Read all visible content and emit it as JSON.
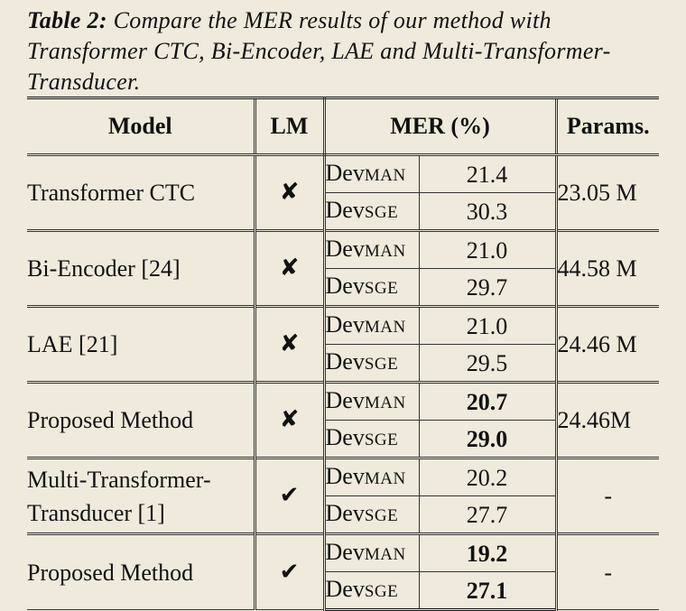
{
  "caption": {
    "label": "Table 2:",
    "text": "Compare the MER results of our method with Transformer CTC, Bi-Encoder, LAE and Multi-Transformer-Transducer."
  },
  "table": {
    "headers": {
      "model": "Model",
      "lm": "LM",
      "mer": "MER (%)",
      "params": "Params."
    },
    "rows": [
      {
        "model": "Transformer CTC",
        "lm": "✘",
        "dev_man": "21.4",
        "dev_sge": "30.3",
        "params": "23.05 M"
      },
      {
        "model": "Bi-Encoder [24]",
        "lm": "✘",
        "dev_man": "21.0",
        "dev_sge": "29.7",
        "params": "44.58 M"
      },
      {
        "model": "LAE [21]",
        "lm": "✘",
        "dev_man": "21.0",
        "dev_sge": "29.5",
        "params": "24.46 M"
      },
      {
        "model": "Proposed Method",
        "lm": "✘",
        "dev_man": "20.7",
        "dev_sge": "29.0",
        "params": "24.46M"
      },
      {
        "model": "Multi-Transformer-Transducer [1]",
        "lm": "✔",
        "dev_man": "20.2",
        "dev_sge": "27.7",
        "params": "-"
      },
      {
        "model": "Proposed Method",
        "lm": "✔",
        "dev_man": "19.2",
        "dev_sge": "27.1",
        "params": "-"
      }
    ],
    "split_labels": {
      "man": {
        "prefix": "Dev",
        "sub": "MAN"
      },
      "sge": {
        "prefix": "Dev",
        "sub": "SGE"
      }
    },
    "model_lines": {
      "multi_line1": "Multi-Transformer-",
      "multi_line2": "Transducer [1]"
    }
  }
}
